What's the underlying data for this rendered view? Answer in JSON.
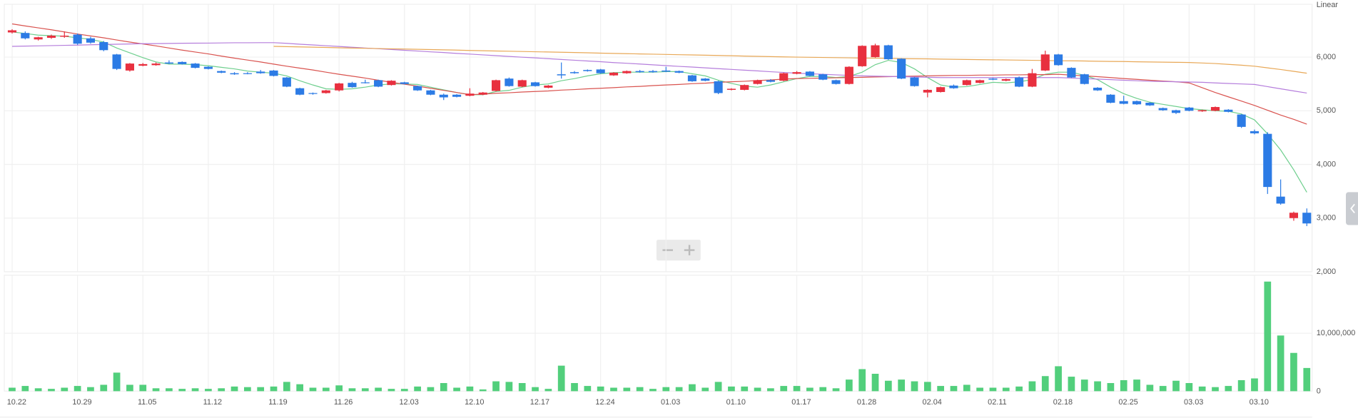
{
  "chart_data": [
    {
      "type": "candlestick",
      "scale_label": "Linear",
      "up_color": "#e8303f",
      "down_color": "#2c7be5",
      "grid": true,
      "categories": [
        "10.22",
        null,
        null,
        null,
        null,
        "10.29",
        null,
        null,
        null,
        null,
        "11.05",
        null,
        null,
        null,
        null,
        "11.12",
        null,
        null,
        null,
        null,
        "11.19",
        null,
        null,
        null,
        null,
        "11.26",
        null,
        null,
        null,
        null,
        "12.03",
        null,
        null,
        null,
        null,
        "12.10",
        null,
        null,
        null,
        null,
        "12.17",
        null,
        null,
        null,
        null,
        "12.24",
        null,
        null,
        null,
        null,
        "01.03",
        null,
        null,
        null,
        null,
        "01.10",
        null,
        null,
        null,
        null,
        "01.17",
        null,
        null,
        null,
        null,
        "01.28",
        null,
        null,
        null,
        null,
        "02.04",
        null,
        null,
        null,
        null,
        "02.11",
        null,
        null,
        null,
        null,
        "02.18",
        null,
        null,
        null,
        null,
        "02.25",
        null,
        null,
        null,
        null,
        "03.03",
        null,
        null,
        null,
        null,
        "03.10",
        null,
        null,
        null,
        null
      ],
      "open": [
        6460,
        6450,
        6330,
        6360,
        6380,
        6420,
        6350,
        6280,
        6050,
        5750,
        5840,
        5850,
        5900,
        5910,
        5880,
        5820,
        5740,
        5700,
        5700,
        5730,
        5750,
        5620,
        5420,
        5330,
        5330,
        5380,
        5520,
        5530,
        5570,
        5480,
        5530,
        5460,
        5380,
        5300,
        5300,
        5280,
        5300,
        5370,
        5600,
        5450,
        5530,
        5430,
        5680,
        5720,
        5760,
        5770,
        5660,
        5700,
        5740,
        5740,
        5750,
        5740,
        5660,
        5600,
        5550,
        5390,
        5390,
        5500,
        5570,
        5560,
        5690,
        5730,
        5680,
        5570,
        5500,
        5830,
        6000,
        6220,
        5970,
        5620,
        5340,
        5350,
        5470,
        5480,
        5520,
        5600,
        5560,
        5620,
        5450,
        5750,
        6050,
        5800,
        5680,
        5430,
        5300,
        5180,
        5180,
        5150,
        5050,
        5010,
        5060,
        4990,
        5000,
        5020,
        4930,
        4620,
        4570,
        3400,
        3000,
        3100
      ],
      "high": [
        6520,
        6480,
        6380,
        6420,
        6480,
        6440,
        6380,
        6300,
        6060,
        5890,
        5890,
        5900,
        5940,
        5920,
        5890,
        5830,
        5750,
        5720,
        5720,
        5760,
        5760,
        5630,
        5430,
        5340,
        5390,
        5520,
        5540,
        5580,
        5580,
        5570,
        5540,
        5470,
        5390,
        5320,
        5310,
        5420,
        5350,
        5580,
        5620,
        5580,
        5540,
        5480,
        5900,
        5740,
        5770,
        5780,
        5720,
        5750,
        5760,
        5760,
        5820,
        5750,
        5670,
        5610,
        5560,
        5420,
        5490,
        5580,
        5590,
        5710,
        5740,
        5740,
        5690,
        5580,
        5830,
        6220,
        6250,
        6230,
        5980,
        5630,
        5400,
        5450,
        5490,
        5580,
        5580,
        5610,
        5600,
        5640,
        5780,
        6120,
        6060,
        5810,
        5690,
        5440,
        5310,
        5280,
        5190,
        5160,
        5060,
        5020,
        5070,
        5020,
        5080,
        5030,
        4940,
        4650,
        4600,
        3720,
        3120,
        3180
      ],
      "low": [
        6440,
        6330,
        6310,
        6340,
        6360,
        6230,
        6250,
        6110,
        5760,
        5730,
        5830,
        5840,
        5870,
        5860,
        5790,
        5770,
        5700,
        5670,
        5680,
        5690,
        5640,
        5440,
        5290,
        5300,
        5320,
        5360,
        5430,
        5510,
        5440,
        5470,
        5490,
        5370,
        5290,
        5200,
        5250,
        5270,
        5290,
        5360,
        5450,
        5440,
        5450,
        5420,
        5600,
        5690,
        5730,
        5690,
        5650,
        5690,
        5710,
        5710,
        5720,
        5700,
        5540,
        5550,
        5310,
        5380,
        5380,
        5490,
        5530,
        5550,
        5680,
        5640,
        5570,
        5490,
        5490,
        5820,
        5990,
        5950,
        5590,
        5450,
        5250,
        5340,
        5410,
        5470,
        5510,
        5570,
        5550,
        5440,
        5440,
        5740,
        5840,
        5610,
        5490,
        5370,
        5140,
        5120,
        5110,
        5090,
        5000,
        4940,
        4990,
        4980,
        4990,
        4970,
        4680,
        4560,
        3450,
        3250,
        2950,
        2850
      ],
      "close": [
        6500,
        6350,
        6370,
        6400,
        6400,
        6250,
        6270,
        6130,
        5780,
        5880,
        5870,
        5880,
        5880,
        5870,
        5800,
        5780,
        5710,
        5680,
        5690,
        5700,
        5650,
        5450,
        5300,
        5320,
        5380,
        5510,
        5440,
        5520,
        5450,
        5560,
        5500,
        5380,
        5300,
        5250,
        5260,
        5320,
        5340,
        5570,
        5460,
        5570,
        5460,
        5470,
        5660,
        5700,
        5740,
        5700,
        5710,
        5740,
        5720,
        5720,
        5730,
        5710,
        5550,
        5560,
        5330,
        5410,
        5480,
        5570,
        5540,
        5700,
        5720,
        5650,
        5580,
        5500,
        5820,
        6210,
        6220,
        5960,
        5600,
        5460,
        5390,
        5440,
        5420,
        5570,
        5570,
        5580,
        5590,
        5450,
        5700,
        6050,
        5850,
        5620,
        5500,
        5380,
        5150,
        5130,
        5120,
        5100,
        5010,
        4960,
        5000,
        5010,
        5070,
        4980,
        4700,
        4580,
        3580,
        3270,
        3100,
        2900
      ],
      "series": [
        {
          "color": "#6fcf8e",
          "values": [
            6470,
            6440,
            6410,
            6400,
            6390,
            6360,
            6330,
            6280,
            6170,
            6080,
            5990,
            5910,
            5870,
            5870,
            5860,
            5840,
            5810,
            5780,
            5740,
            5720,
            5700,
            5650,
            5560,
            5480,
            5410,
            5400,
            5410,
            5440,
            5480,
            5500,
            5500,
            5490,
            5440,
            5390,
            5340,
            5300,
            5300,
            5360,
            5380,
            5440,
            5480,
            5500,
            5560,
            5600,
            5650,
            5690,
            5710,
            5720,
            5720,
            5720,
            5730,
            5730,
            5690,
            5650,
            5570,
            5510,
            5460,
            5440,
            5480,
            5540,
            5600,
            5640,
            5640,
            5620,
            5640,
            5720,
            5860,
            5940,
            5900,
            5780,
            5620,
            5480,
            5440,
            5450,
            5490,
            5530,
            5520,
            5540,
            5580,
            5680,
            5720,
            5720,
            5660,
            5580,
            5440,
            5320,
            5230,
            5160,
            5120,
            5080,
            5040,
            5020,
            5000,
            4990,
            4940,
            4830,
            4570,
            4270,
            3900,
            3480
          ]
        },
        {
          "color": "#d9534f",
          "values": [
            6620,
            6580,
            6545,
            6510,
            6470,
            6430,
            6395,
            6360,
            6320,
            6280,
            6245,
            6210,
            6170,
            6130,
            6095,
            6060,
            6020,
            5980,
            5945,
            5910,
            5870,
            5830,
            5795,
            5760,
            5720,
            5680,
            5645,
            5610,
            5570,
            5530,
            5495,
            5460,
            5420,
            5380,
            5340,
            5300,
            5310,
            5325,
            5335,
            5350,
            5360,
            5370,
            5385,
            5395,
            5410,
            5420,
            5430,
            5445,
            5455,
            5470,
            5480,
            5490,
            5505,
            5515,
            5530,
            5540,
            5550,
            5565,
            5575,
            5590,
            5600,
            5605,
            5610,
            5615,
            5620,
            5625,
            5630,
            5635,
            5640,
            5645,
            5650,
            5655,
            5660,
            5660,
            5665,
            5665,
            5670,
            5670,
            5675,
            5675,
            5680,
            5665,
            5650,
            5635,
            5620,
            5600,
            5585,
            5570,
            5555,
            5540,
            5520,
            5430,
            5340,
            5260,
            5180,
            5100,
            5010,
            4920,
            4840,
            4750
          ]
        },
        {
          "color": "#b57edc",
          "values": [
            6200,
            6205,
            6210,
            6215,
            6220,
            6225,
            6230,
            6235,
            6240,
            6245,
            6250,
            6252,
            6255,
            6258,
            6260,
            6262,
            6265,
            6267,
            6268,
            6270,
            6270,
            6256,
            6241,
            6227,
            6213,
            6199,
            6184,
            6170,
            6156,
            6142,
            6127,
            6113,
            6099,
            6085,
            6070,
            6056,
            6042,
            6028,
            6013,
            5999,
            5985,
            5971,
            5956,
            5942,
            5928,
            5914,
            5899,
            5885,
            5871,
            5857,
            5842,
            5828,
            5814,
            5800,
            5785,
            5771,
            5757,
            5743,
            5728,
            5714,
            5700,
            5690,
            5680,
            5670,
            5660,
            5650,
            5645,
            5640,
            5635,
            5630,
            5625,
            5620,
            5620,
            5620,
            5620,
            5620,
            5620,
            5620,
            5620,
            5620,
            5620,
            5610,
            5600,
            5590,
            5580,
            5570,
            5560,
            5550,
            5545,
            5540,
            5535,
            5530,
            5520,
            5510,
            5500,
            5490,
            5450,
            5410,
            5370,
            5330
          ]
        },
        {
          "color": "#e8a857",
          "values": [
            null,
            null,
            null,
            null,
            null,
            null,
            null,
            null,
            null,
            null,
            null,
            null,
            null,
            null,
            null,
            null,
            null,
            null,
            null,
            null,
            6200,
            6195,
            6190,
            6185,
            6180,
            6175,
            6170,
            6165,
            6160,
            6155,
            6150,
            6145,
            6140,
            6135,
            6130,
            6125,
            6120,
            6115,
            6110,
            6105,
            6100,
            6095,
            6090,
            6085,
            6080,
            6075,
            6070,
            6065,
            6060,
            6055,
            6050,
            6045,
            6040,
            6035,
            6030,
            6025,
            6020,
            6015,
            6010,
            6005,
            6000,
            5997,
            5993,
            5990,
            5987,
            5983,
            5980,
            5977,
            5973,
            5970,
            5967,
            5963,
            5960,
            5957,
            5953,
            5950,
            5947,
            5943,
            5940,
            5937,
            5933,
            5930,
            5927,
            5923,
            5920,
            5917,
            5913,
            5910,
            5907,
            5903,
            5900,
            5890,
            5880,
            5865,
            5850,
            5830,
            5800,
            5770,
            5735,
            5700
          ]
        }
      ],
      "ylim": [
        2000,
        7000
      ],
      "yticks": [
        {
          "value": 2000,
          "label": "2,000"
        },
        {
          "value": 3000,
          "label": "3,000"
        },
        {
          "value": 4000,
          "label": "4,000"
        },
        {
          "value": 5000,
          "label": "5,000"
        },
        {
          "value": 6000,
          "label": "6,000"
        }
      ]
    },
    {
      "type": "bar",
      "color": "#52cf7c",
      "grid": true,
      "values": [
        600000,
        900000,
        500000,
        400000,
        600000,
        900000,
        700000,
        1100000,
        3200000,
        1100000,
        1100000,
        500000,
        500000,
        400000,
        500000,
        400000,
        500000,
        800000,
        700000,
        700000,
        800000,
        1600000,
        1200000,
        600000,
        600000,
        1000000,
        500000,
        500000,
        600000,
        400000,
        400000,
        800000,
        700000,
        1400000,
        600000,
        800000,
        300000,
        1700000,
        1600000,
        1400000,
        700000,
        400000,
        4400000,
        1400000,
        900000,
        800000,
        600000,
        600000,
        700000,
        400000,
        700000,
        700000,
        1200000,
        600000,
        1600000,
        800000,
        800000,
        600000,
        500000,
        900000,
        900000,
        600000,
        700000,
        500000,
        2000000,
        3800000,
        3000000,
        1800000,
        2000000,
        1700000,
        1600000,
        900000,
        900000,
        1100000,
        600000,
        600000,
        600000,
        800000,
        1700000,
        2600000,
        4300000,
        2500000,
        2000000,
        1700000,
        1400000,
        1900000,
        2000000,
        1100000,
        900000,
        1800000,
        1400000,
        800000,
        700000,
        900000,
        1900000,
        2200000,
        18900000,
        9600000,
        6600000,
        4000000
      ],
      "ylim": [
        0,
        20000000
      ],
      "yticks": [
        0,
        {
          "value": 10000000,
          "label": "10,000,000"
        }
      ]
    }
  ]
}
